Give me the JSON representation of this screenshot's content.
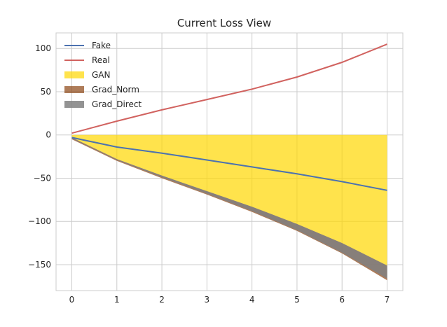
{
  "chart_data": {
    "type": "area",
    "title": "Current Loss View",
    "xlabel": "",
    "ylabel": "",
    "x": [
      0,
      1,
      2,
      3,
      4,
      5,
      6,
      7
    ],
    "xlim": [
      -0.35,
      7.35
    ],
    "ylim": [
      -180,
      118
    ],
    "xticks": [
      0,
      1,
      2,
      3,
      4,
      5,
      6,
      7
    ],
    "yticks": [
      -150,
      -100,
      -50,
      0,
      50,
      100
    ],
    "ytick_labels": [
      "−150",
      "−100",
      "−50",
      "0",
      "50",
      "100"
    ],
    "grid": true,
    "legend_position": "top-left",
    "lines": [
      {
        "name": "Fake",
        "color": "#4c72b0",
        "values": [
          -3,
          -14,
          -21,
          -29,
          -37,
          -45,
          -54,
          -64
        ]
      },
      {
        "name": "Real",
        "color": "#d1625f",
        "values": [
          2,
          16,
          29,
          41,
          53,
          67,
          84,
          105
        ]
      }
    ],
    "fills": [
      {
        "name": "GAN",
        "color": "#ffd700",
        "opacity": 0.7,
        "upper": [
          0,
          0,
          0,
          0,
          0,
          0,
          0,
          0
        ],
        "lower": [
          -3,
          -28,
          -47,
          -65,
          -83,
          -103,
          -125,
          -151
        ]
      },
      {
        "name": "Grad_Norm",
        "color": "#8b4513",
        "opacity": 0.7,
        "upper": [
          -3,
          -28,
          -47,
          -65,
          -83,
          -103,
          -125,
          -151
        ],
        "lower": [
          -5,
          -30,
          -50,
          -69,
          -89,
          -111,
          -137,
          -168
        ]
      },
      {
        "name": "Grad_Direct",
        "color": "#808080",
        "opacity": 0.85,
        "upper": [
          -3,
          -28,
          -47,
          -65,
          -83,
          -103,
          -125,
          -151
        ],
        "lower": [
          -4,
          -29,
          -49,
          -68,
          -88,
          -110,
          -136,
          -166
        ]
      }
    ],
    "legend": [
      {
        "label": "Fake",
        "kind": "line",
        "color": "#4c72b0"
      },
      {
        "label": "Real",
        "kind": "line",
        "color": "#d1625f"
      },
      {
        "label": "GAN",
        "kind": "patch",
        "color": "#ffd700",
        "opacity": 0.7
      },
      {
        "label": "Grad_Norm",
        "kind": "patch",
        "color": "#8b4513",
        "opacity": 0.7
      },
      {
        "label": "Grad_Direct",
        "kind": "patch",
        "color": "#808080",
        "opacity": 0.85
      }
    ]
  }
}
